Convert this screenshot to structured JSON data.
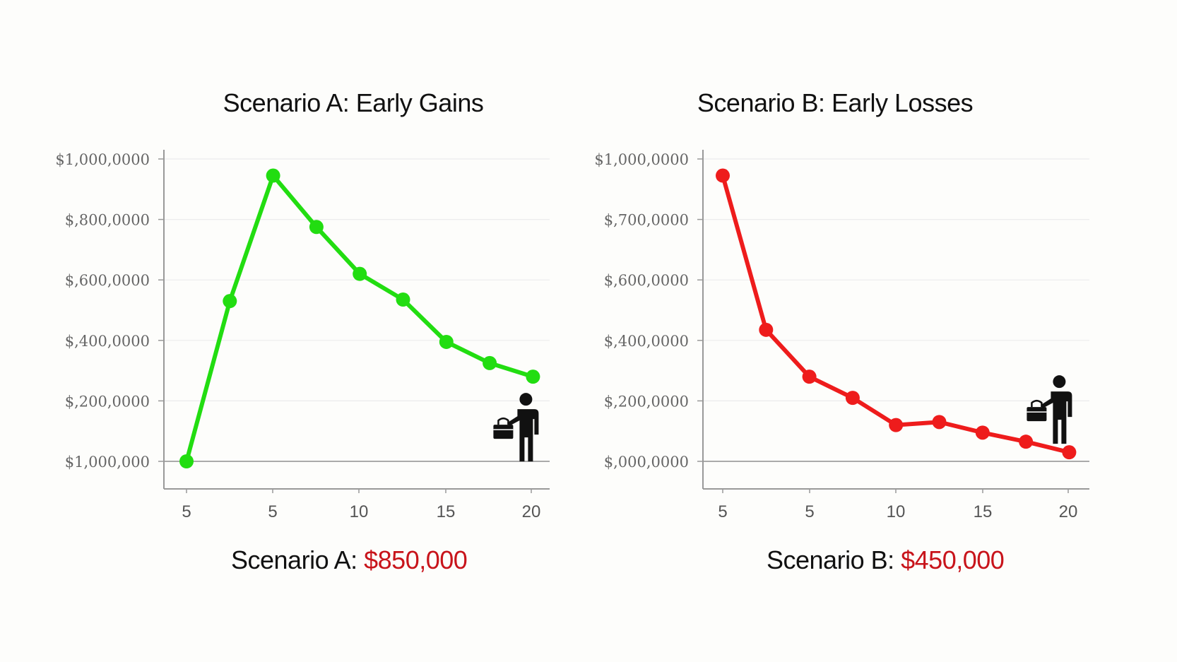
{
  "chart_data": [
    {
      "type": "line",
      "title": "Scenario A: Early Gains",
      "result_label": "Scenario A:",
      "result_value": "$850,000",
      "color": "#22dd11",
      "y_tick_labels": [
        "$1,000,0000",
        "$,800,0000",
        "$,600,0000",
        "$,400,0000",
        "$,200,0000",
        "$1,000,000"
      ],
      "x_tick_labels": [
        "5",
        "5",
        "10",
        "15",
        "20"
      ],
      "ylim": [
        0,
        1000000
      ],
      "series": [
        {
          "values": [
            0,
            530000,
            945000,
            775000,
            620000,
            535000,
            395000,
            325000,
            280000
          ]
        }
      ],
      "icon": "person-with-briefcase-icon"
    },
    {
      "type": "line",
      "title": "Scenario B: Early Losses",
      "result_label": "Scenario B:",
      "result_value": "$450,000",
      "color": "#ee1c1c",
      "y_tick_labels": [
        "$1,000,0000",
        "$,700,0000",
        "$,600,0000",
        "$,400,0000",
        "$,200,0000",
        "$,000,0000"
      ],
      "x_tick_labels": [
        "5",
        "5",
        "10",
        "15",
        "20"
      ],
      "ylim": [
        0,
        1000000
      ],
      "series": [
        {
          "values": [
            945000,
            435000,
            280000,
            210000,
            120000,
            130000,
            95000,
            65000,
            30000
          ]
        }
      ],
      "icon": "person-with-briefcase-icon"
    }
  ]
}
